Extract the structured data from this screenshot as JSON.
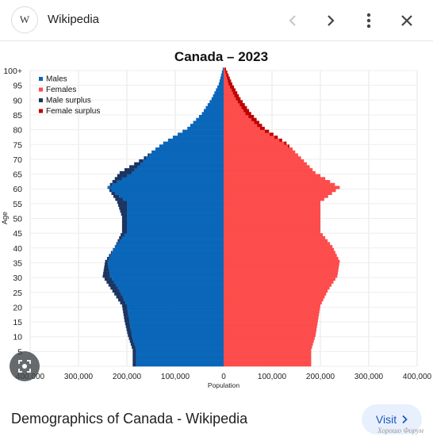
{
  "header": {
    "logo_text": "W",
    "site_name": "Wikipedia",
    "icons": [
      "chevron-left-icon",
      "chevron-right-icon",
      "more-vert-icon",
      "close-icon"
    ]
  },
  "footer": {
    "title": "Demographics of Canada - Wikipedia",
    "visit_label": "Visit",
    "watermark": "Хорошо Форум"
  },
  "colors": {
    "males": "#0a66b8",
    "females": "#fd4c4c",
    "male_surplus": "#1c3561",
    "female_surplus": "#c10000",
    "visit_text": "#1a56c4"
  },
  "chart_data": {
    "type": "bar",
    "orientation": "horizontal-pyramid",
    "title": "Canada – 2023",
    "xlabel": "Population",
    "ylabel": "Age",
    "xlim": [
      -400000,
      400000
    ],
    "ylim": [
      0,
      100
    ],
    "x_ticks": [
      "400,000",
      "300,000",
      "200,000",
      "100,000",
      "0",
      "100,000",
      "200,000",
      "300,000",
      "400,000"
    ],
    "y_ticks": [
      "5",
      "10",
      "15",
      "20",
      "25",
      "30",
      "35",
      "40",
      "45",
      "50",
      "55",
      "60",
      "65",
      "70",
      "75",
      "80",
      "85",
      "90",
      "95",
      "100+"
    ],
    "legend": {
      "position": "top-left",
      "entries": [
        "Males",
        "Females",
        "Male surplus",
        "Female surplus"
      ]
    },
    "ages": [
      5,
      10,
      15,
      20,
      25,
      30,
      35,
      40,
      45,
      50,
      55,
      60,
      65,
      70,
      75,
      80,
      85,
      90,
      95,
      100
    ],
    "series": [
      {
        "name": "Males",
        "values": [
          188000,
          198000,
          205000,
          210000,
          230000,
          250000,
          245000,
          225000,
          210000,
          210000,
          220000,
          240000,
          215000,
          165000,
          125000,
          75000,
          45000,
          25000,
          10000,
          2000
        ]
      },
      {
        "name": "Females",
        "values": [
          181000,
          190000,
          195000,
          200000,
          215000,
          235000,
          240000,
          225000,
          200000,
          200000,
          200000,
          240000,
          190000,
          160000,
          130000,
          85000,
          57000,
          35000,
          18000,
          5000
        ]
      }
    ]
  }
}
